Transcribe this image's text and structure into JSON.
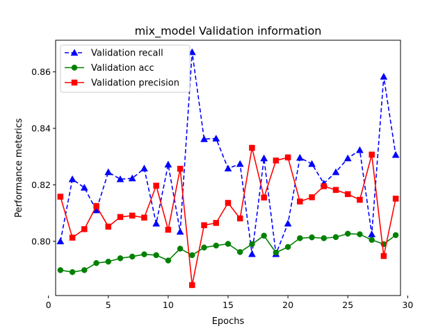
{
  "chart_data": {
    "type": "line",
    "title": "mix_model Validation information",
    "xlabel": "Epochs",
    "ylabel": "Performance meterics",
    "xlim": [
      0.6,
      29.4
    ],
    "ylim": [
      0.7808,
      0.8712
    ],
    "xticks": [
      0,
      5,
      10,
      15,
      20,
      25,
      30
    ],
    "yticks": [
      0.8,
      0.82,
      0.84,
      0.86
    ],
    "xtick_labels": [
      "0",
      "5",
      "10",
      "15",
      "20",
      "25",
      "30"
    ],
    "ytick_labels": [
      "0.80",
      "0.82",
      "0.84",
      "0.86"
    ],
    "legend_position": "upper-left",
    "grid": false,
    "x": [
      1,
      2,
      3,
      4,
      5,
      6,
      7,
      8,
      9,
      10,
      11,
      12,
      13,
      14,
      15,
      16,
      17,
      18,
      19,
      20,
      21,
      22,
      23,
      24,
      25,
      26,
      27,
      28,
      29
    ],
    "series": [
      {
        "name": "Validation recall",
        "color": "#0000ff",
        "line_style": "dashed",
        "marker": "triangle",
        "values": [
          0.8,
          0.822,
          0.819,
          0.811,
          0.8245,
          0.822,
          0.8223,
          0.8258,
          0.8063,
          0.8272,
          0.8034,
          0.867,
          0.8362,
          0.8364,
          0.8258,
          0.8274,
          0.7955,
          0.8294,
          0.7955,
          0.8063,
          0.8296,
          0.8274,
          0.8205,
          0.8245,
          0.8294,
          0.8323,
          0.8025,
          0.8583,
          0.8306
        ]
      },
      {
        "name": "Validation acc",
        "color": "#008000",
        "line_style": "solid",
        "marker": "circle",
        "values": [
          0.7898,
          0.7891,
          0.7898,
          0.7923,
          0.7928,
          0.794,
          0.7946,
          0.7954,
          0.7951,
          0.7932,
          0.7974,
          0.7951,
          0.7978,
          0.7985,
          0.7991,
          0.7962,
          0.799,
          0.802,
          0.796,
          0.798,
          0.8011,
          0.8014,
          0.8011,
          0.8015,
          0.8027,
          0.8025,
          0.8005,
          0.799,
          0.8022
        ]
      },
      {
        "name": "Validation precision",
        "color": "#ff0000",
        "line_style": "solid",
        "marker": "square",
        "values": [
          0.8158,
          0.8013,
          0.8043,
          0.8125,
          0.8052,
          0.8086,
          0.8091,
          0.8084,
          0.8197,
          0.8041,
          0.8257,
          0.7845,
          0.8057,
          0.8065,
          0.8136,
          0.8081,
          0.8331,
          0.8155,
          0.8286,
          0.8297,
          0.8141,
          0.8156,
          0.8195,
          0.8182,
          0.8167,
          0.8147,
          0.8307,
          0.7948,
          0.8151
        ]
      }
    ]
  }
}
